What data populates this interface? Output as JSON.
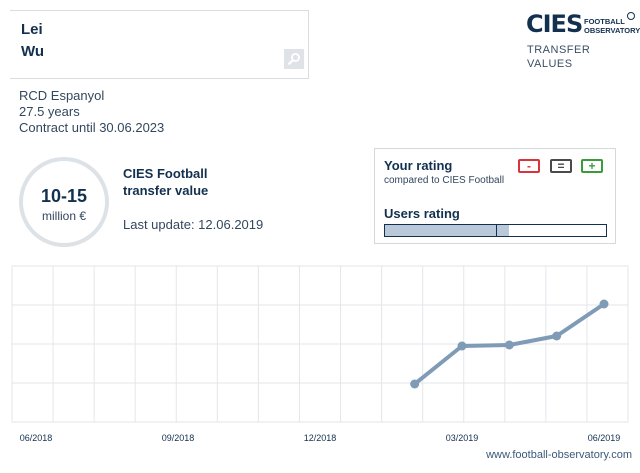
{
  "player": {
    "first_name": "Lei",
    "last_name": "Wu",
    "club": "RCD Espanyol",
    "age": "27.5 years",
    "contract": "Contract until 30.06.2023"
  },
  "logo": {
    "text_ci": "CI",
    "text_e": "E",
    "text_s": "S",
    "sub_line1": "FOOTBALL",
    "sub_line2": "OBSERVATORY",
    "caption_line1": "TRANSFER",
    "caption_line2": "VALUES"
  },
  "valuation": {
    "range": "10-15",
    "unit": "million €",
    "label_line1": "CIES Football",
    "label_line2": "transfer value",
    "last_update": "Last update: 12.06.2019"
  },
  "rating": {
    "title": "Your rating",
    "subtitle": "compared to CIES Football",
    "minus": "-",
    "equal": "=",
    "plus": "+",
    "users_title": "Users rating",
    "users_fill_fraction": 0.56,
    "users_marker_fraction": 0.5
  },
  "chart_data": {
    "type": "line",
    "x_tick_labels": [
      "06/2018",
      "09/2018",
      "12/2018",
      "03/2019",
      "06/2019"
    ],
    "x_months": [
      "2018-06",
      "2018-07",
      "2018-08",
      "2018-09",
      "2018-10",
      "2018-11",
      "2018-12",
      "2019-01",
      "2019-02",
      "2019-03",
      "2019-04",
      "2019-05",
      "2019-06"
    ],
    "series": [
      {
        "points": [
          {
            "x": "2019-02",
            "y": 0.2
          },
          {
            "x": "2019-03",
            "y": 0.58
          },
          {
            "x": "2019-04",
            "y": 0.59
          },
          {
            "x": "2019-05",
            "y": 0.68
          },
          {
            "x": "2019-06",
            "y": 1.0
          }
        ]
      }
    ],
    "line_color": "#7f9bb5",
    "grid": true
  },
  "footer": {
    "url": "www.football-observatory.com"
  }
}
